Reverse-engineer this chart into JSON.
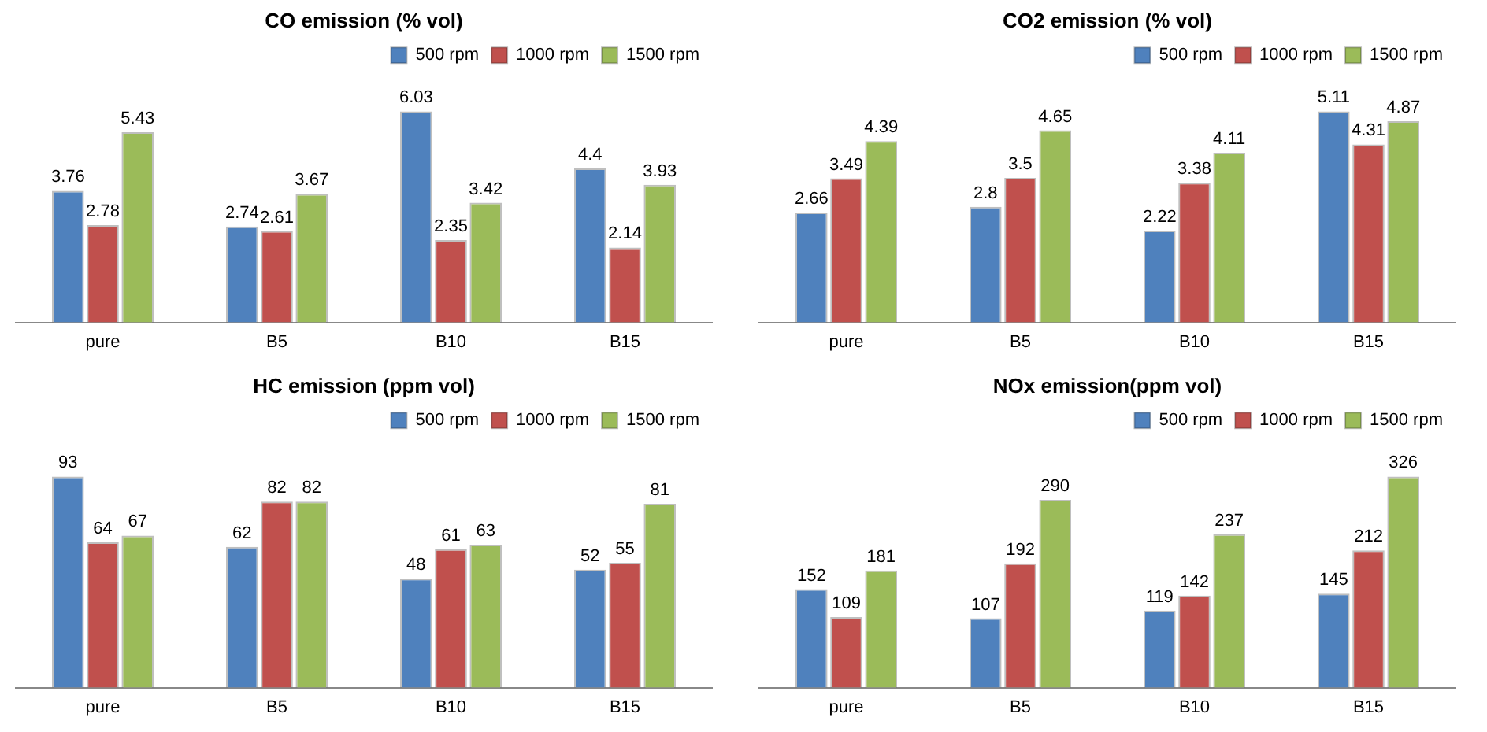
{
  "chart_data": [
    {
      "type": "bar",
      "title": "CO emission (% vol)",
      "categories": [
        "pure",
        "B5",
        "B10",
        "B15"
      ],
      "series": [
        {
          "name": "500 rpm",
          "color": "#4f81bd",
          "values": [
            3.76,
            2.74,
            6.03,
            4.4
          ]
        },
        {
          "name": "1000 rpm",
          "color": "#c0504d",
          "values": [
            2.78,
            2.61,
            2.35,
            2.14
          ]
        },
        {
          "name": "1500 rpm",
          "color": "#9bbb59",
          "values": [
            5.43,
            3.67,
            3.42,
            3.93
          ]
        }
      ],
      "data_labels": true,
      "legend": "top right",
      "grid": false,
      "tick_labels": "x"
    },
    {
      "type": "bar",
      "title": "CO2 emission (% vol)",
      "categories": [
        "pure",
        "B5",
        "B10",
        "B15"
      ],
      "series": [
        {
          "name": "500 rpm",
          "color": "#4f81bd",
          "values": [
            2.66,
            2.8,
            2.22,
            5.11
          ]
        },
        {
          "name": "1000 rpm",
          "color": "#c0504d",
          "values": [
            3.49,
            3.5,
            3.38,
            4.31
          ]
        },
        {
          "name": "1500 rpm",
          "color": "#9bbb59",
          "values": [
            4.39,
            4.65,
            4.11,
            4.87
          ]
        }
      ],
      "data_labels": true,
      "legend": "top right",
      "grid": false,
      "tick_labels": "x"
    },
    {
      "type": "bar",
      "title": "HC emission (ppm vol)",
      "categories": [
        "pure",
        "B5",
        "B10",
        "B15"
      ],
      "series": [
        {
          "name": "500 rpm",
          "color": "#4f81bd",
          "values": [
            93,
            62,
            48,
            52
          ]
        },
        {
          "name": "1000 rpm",
          "color": "#c0504d",
          "values": [
            64,
            82,
            61,
            55
          ]
        },
        {
          "name": "1500 rpm",
          "color": "#9bbb59",
          "values": [
            67,
            82,
            63,
            81
          ]
        }
      ],
      "data_labels": true,
      "legend": "top right",
      "grid": false,
      "tick_labels": "x"
    },
    {
      "type": "bar",
      "title": "NOx emission(ppm vol)",
      "categories": [
        "pure",
        "B5",
        "B10",
        "B15"
      ],
      "series": [
        {
          "name": "500 rpm",
          "color": "#4f81bd",
          "values": [
            152,
            107,
            119,
            145
          ]
        },
        {
          "name": "1000 rpm",
          "color": "#c0504d",
          "values": [
            109,
            192,
            142,
            212
          ]
        },
        {
          "name": "1500 rpm",
          "color": "#9bbb59",
          "values": [
            181,
            290,
            237,
            326
          ]
        }
      ],
      "data_labels": true,
      "legend": "top right",
      "grid": false,
      "tick_labels": "x"
    }
  ]
}
